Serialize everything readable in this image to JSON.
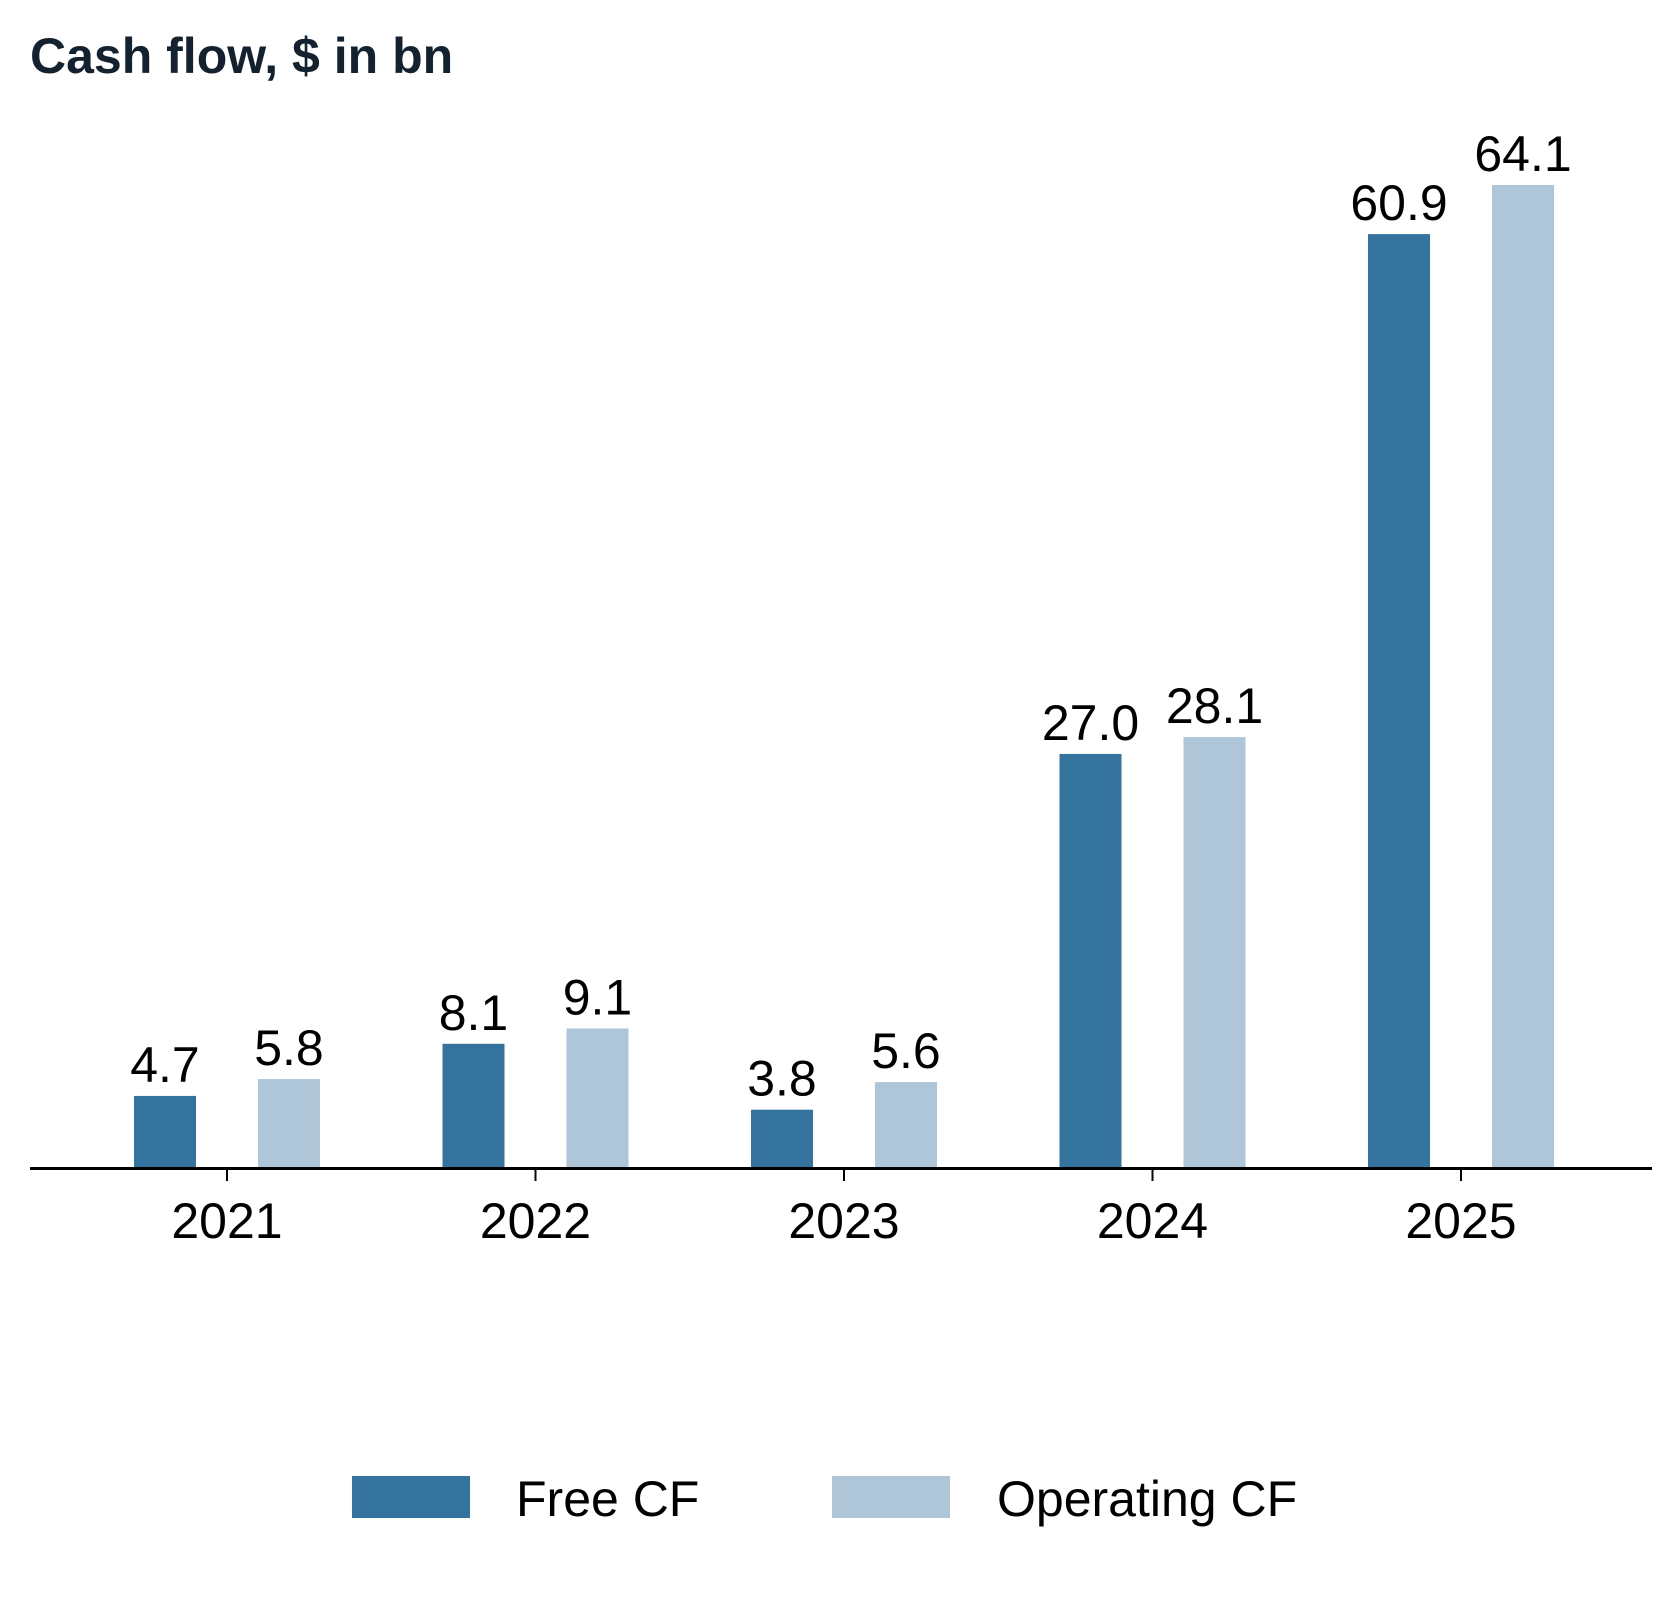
{
  "chart_data": {
    "type": "bar",
    "title": "Cash flow, $ in bn",
    "xlabel": "",
    "ylabel": "",
    "categories": [
      "2021",
      "2022",
      "2023",
      "2024",
      "2025"
    ],
    "series": [
      {
        "name": "Free CF",
        "color": "#33739d",
        "values": [
          4.7,
          8.1,
          3.8,
          27.0,
          60.9
        ],
        "labels": [
          "4.7",
          "8.1",
          "3.8",
          "27.0",
          "60.9"
        ]
      },
      {
        "name": "Operating CF",
        "color": "#afc6d8",
        "values": [
          5.8,
          9.1,
          5.6,
          28.1,
          64.1
        ],
        "labels": [
          "5.8",
          "9.1",
          "5.6",
          "28.1",
          "64.1"
        ]
      }
    ],
    "ylim": [
      0,
      64.1
    ],
    "grid": false,
    "legend_position": "bottom-center"
  }
}
